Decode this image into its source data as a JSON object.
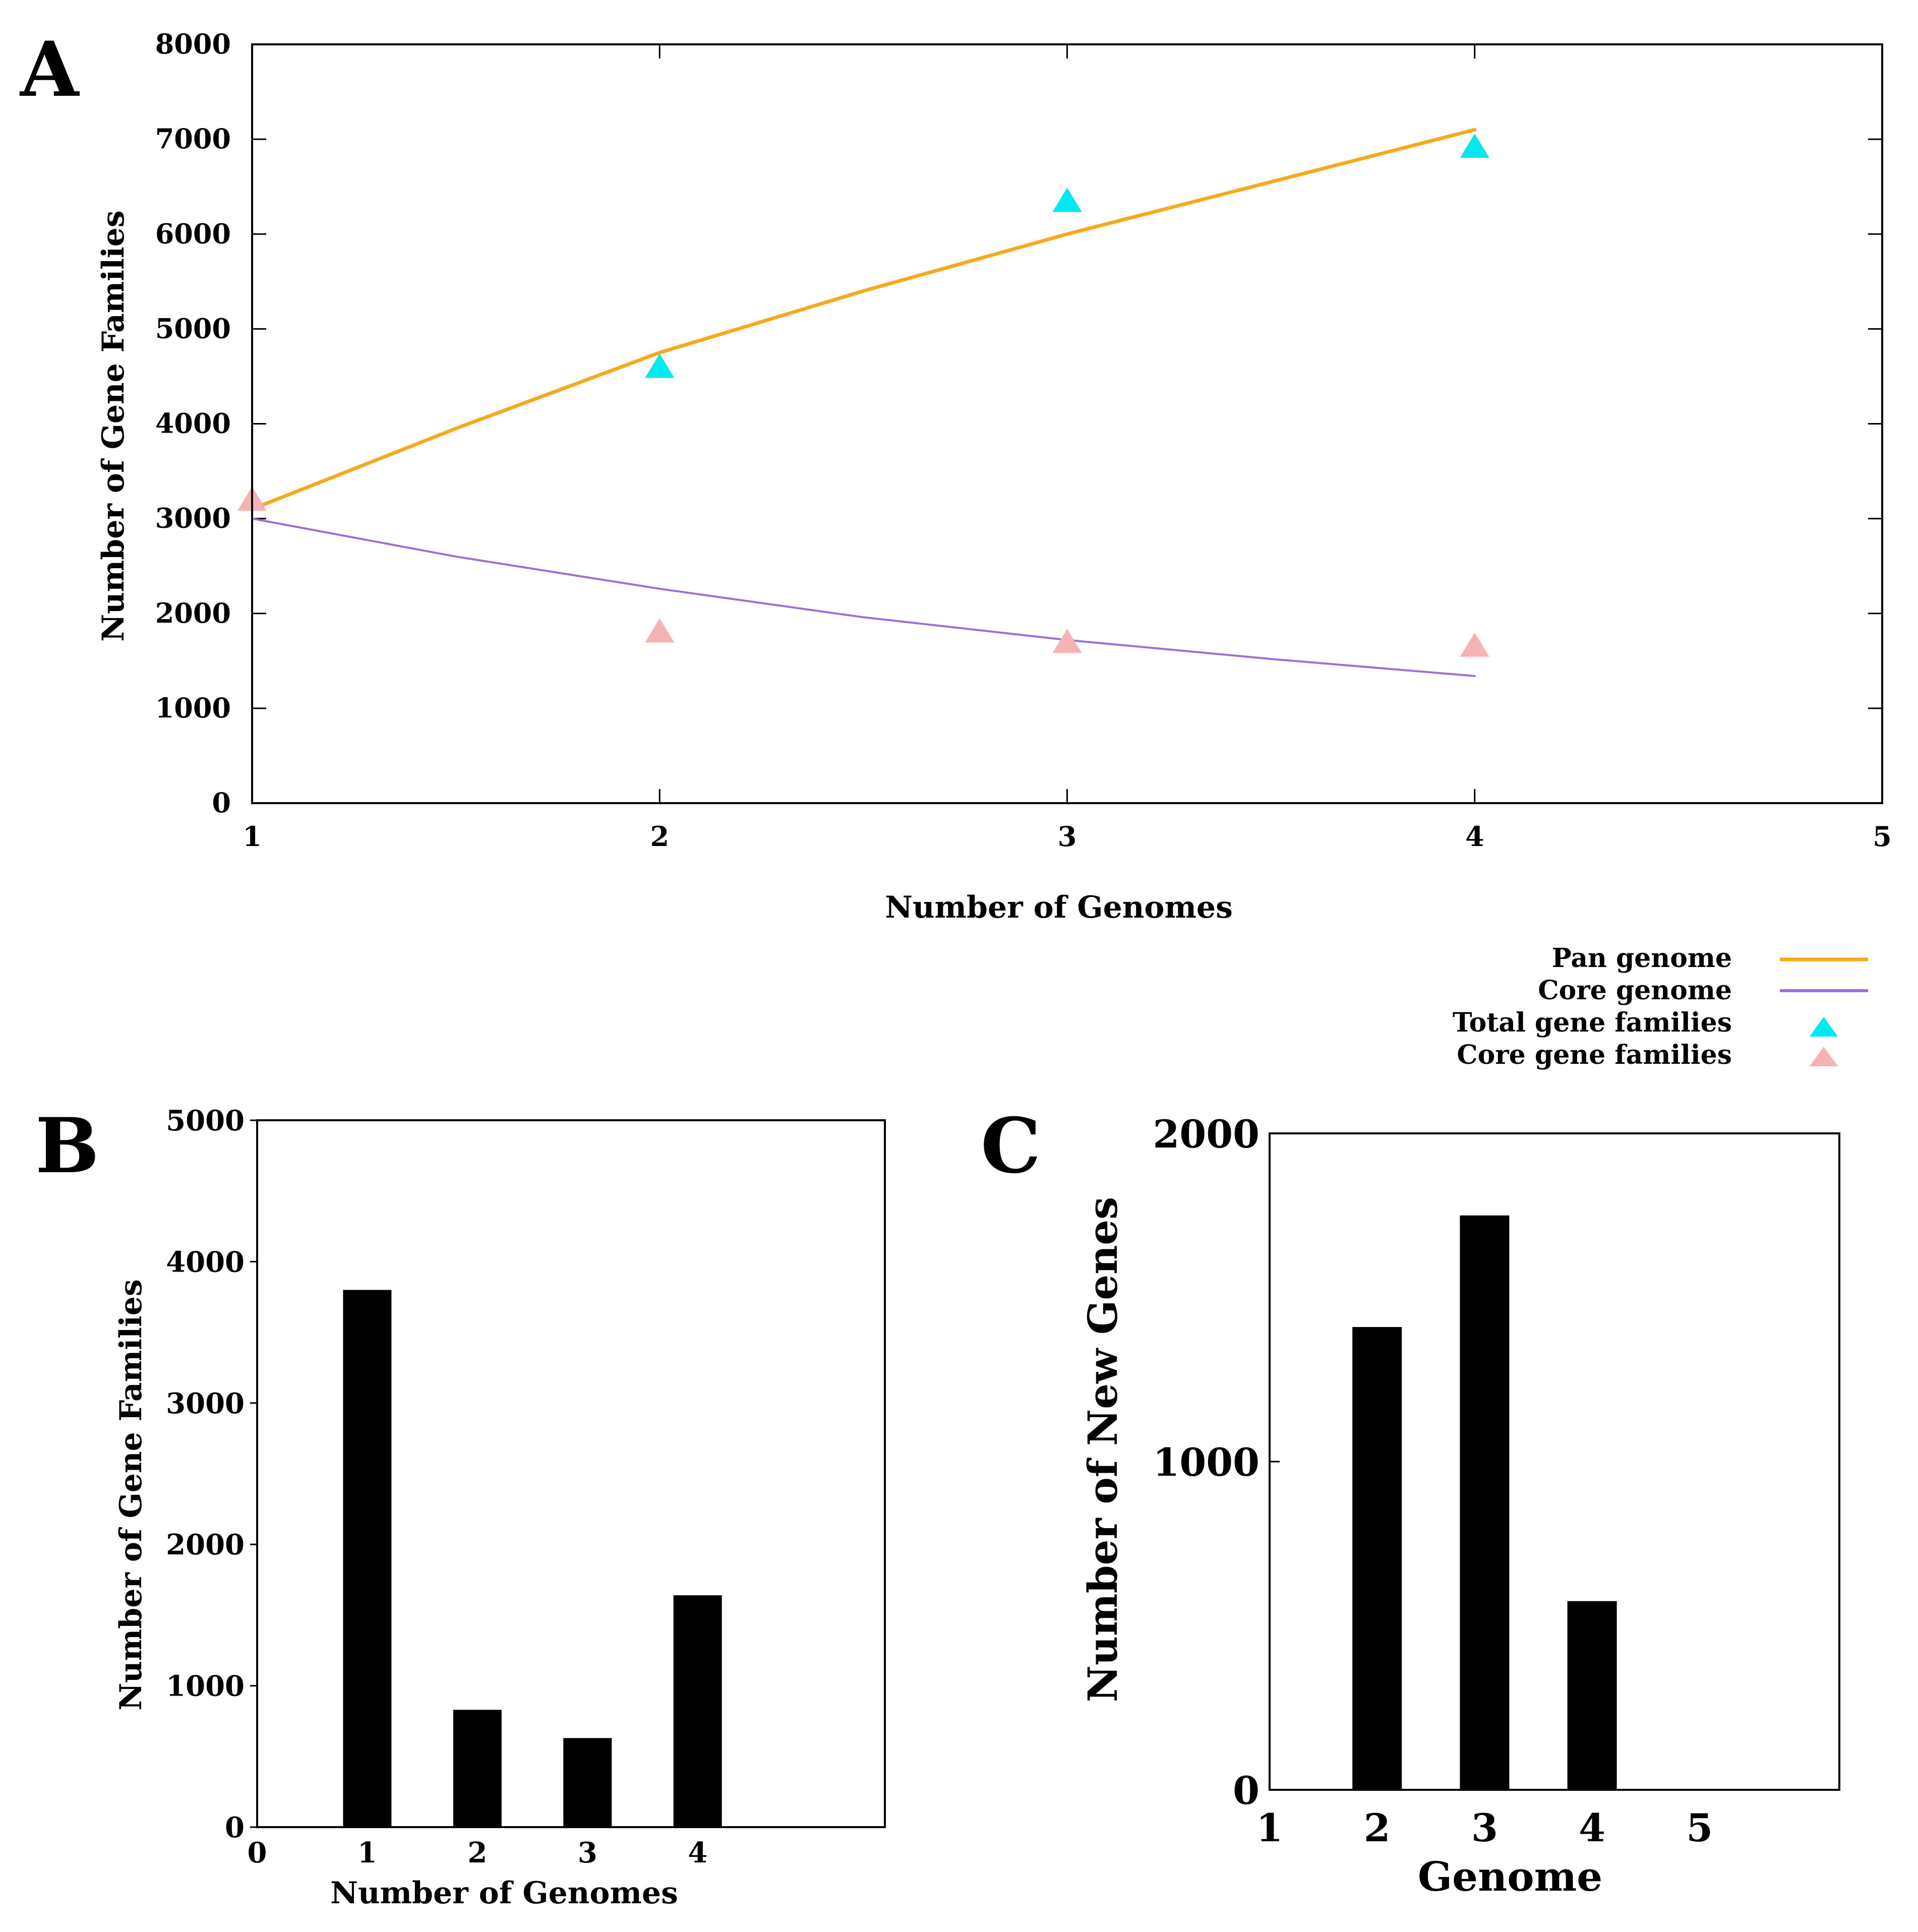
{
  "colors": {
    "pan_line": "#F7A81B",
    "core_line": "#9B6FD6",
    "total_marker": "#00E8F0",
    "core_marker": "#F6B3B3",
    "bar": "#000000",
    "frame": "#000000"
  },
  "chart_data": [
    {
      "id": "A",
      "panel_label": "A",
      "type": "scatter",
      "title": "",
      "xlabel": "Number of Genomes",
      "ylabel": "Number of Gene Families",
      "xlim": [
        1,
        5
      ],
      "ylim": [
        0,
        8000
      ],
      "xticks": [
        "1",
        "2",
        "3",
        "4",
        "5"
      ],
      "yticks": [
        "0",
        "1000",
        "2000",
        "3000",
        "4000",
        "5000",
        "6000",
        "7000",
        "8000"
      ],
      "legend_position": "bottom-right",
      "series": [
        {
          "name": "Pan genome",
          "kind": "line",
          "x": [
            1,
            1.5,
            2,
            2.5,
            3,
            3.5,
            4
          ],
          "values": [
            3100,
            3950,
            4750,
            5400,
            6000,
            6550,
            7100
          ]
        },
        {
          "name": "Core genome",
          "kind": "line",
          "x": [
            1,
            1.5,
            2,
            2.5,
            3,
            3.5,
            4
          ],
          "values": [
            3000,
            2600,
            2260,
            1960,
            1720,
            1520,
            1340
          ]
        },
        {
          "name": "Total gene families",
          "kind": "marker",
          "x": [
            2,
            3,
            4
          ],
          "values": [
            4600,
            6350,
            6920
          ]
        },
        {
          "name": "Core gene families",
          "kind": "marker",
          "x": [
            1,
            2,
            3,
            4
          ],
          "values": [
            3200,
            1810,
            1700,
            1660
          ]
        }
      ]
    },
    {
      "id": "B",
      "panel_label": "B",
      "type": "bar",
      "title": "",
      "xlabel": "Number of Genomes",
      "ylabel": "Number of Gene Families",
      "xlim": [
        0,
        5.7
      ],
      "ylim": [
        0,
        5000
      ],
      "xticks": [
        "0",
        "1",
        "2",
        "3",
        "4"
      ],
      "yticks": [
        "0",
        "1000",
        "2000",
        "3000",
        "4000",
        "5000"
      ],
      "categories": [
        "1",
        "2",
        "3",
        "4"
      ],
      "values": [
        3800,
        830,
        630,
        1640
      ]
    },
    {
      "id": "C",
      "panel_label": "C",
      "type": "bar",
      "title": "",
      "xlabel": "Genome",
      "ylabel": "Number of New Genes",
      "xlim": [
        1,
        6.3
      ],
      "ylim": [
        0,
        2000
      ],
      "xticks": [
        "1",
        "2",
        "3",
        "4",
        "5"
      ],
      "yticks": [
        "0",
        "1000",
        "2000"
      ],
      "categories": [
        "2",
        "3",
        "4"
      ],
      "values": [
        1410,
        1750,
        575
      ]
    }
  ]
}
